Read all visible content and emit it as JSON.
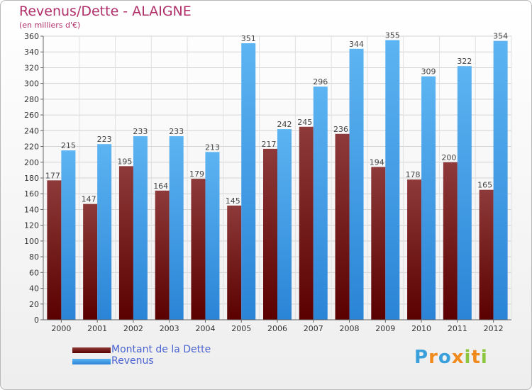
{
  "title": "Revenus/Dette - ALAIGNE",
  "subtitle": "(en milliers d'€)",
  "colors": {
    "title": "#b0306a",
    "debt_dark": "#5a0000",
    "debt_light": "#8e3a3a",
    "revenue_dark": "#2b84d6",
    "revenue_light": "#5cb4f2",
    "legend_text": "#4a63d0"
  },
  "legend": {
    "debt": "Montant de la Dette",
    "revenue": "Revenus"
  },
  "logo": {
    "text": "Proxiti",
    "letters": [
      "P",
      "r",
      "o",
      "x",
      "i",
      "t",
      "i"
    ],
    "letter_colors": [
      "#3aa0dc",
      "#f08a1c",
      "#3aa0dc",
      "#f08a1c",
      "#8cc63e",
      "#f08a1c",
      "#8cc63e"
    ]
  },
  "chart_data": {
    "type": "bar",
    "title": "Revenus/Dette - ALAIGNE",
    "ylabel": "(en milliers d'€)",
    "xlabel": "",
    "categories": [
      "2000",
      "2001",
      "2002",
      "2003",
      "2004",
      "2005",
      "2006",
      "2007",
      "2008",
      "2009",
      "2010",
      "2011",
      "2012"
    ],
    "series": [
      {
        "name": "Montant de la Dette",
        "values": [
          177,
          147,
          195,
          164,
          179,
          145,
          217,
          245,
          236,
          194,
          178,
          200,
          165
        ]
      },
      {
        "name": "Revenus",
        "values": [
          215,
          223,
          233,
          233,
          213,
          351,
          242,
          296,
          344,
          355,
          309,
          322,
          354
        ]
      }
    ],
    "ylim": [
      0,
      360
    ],
    "ytick_step": 20,
    "grid": true,
    "legend_position": "bottom-left"
  }
}
